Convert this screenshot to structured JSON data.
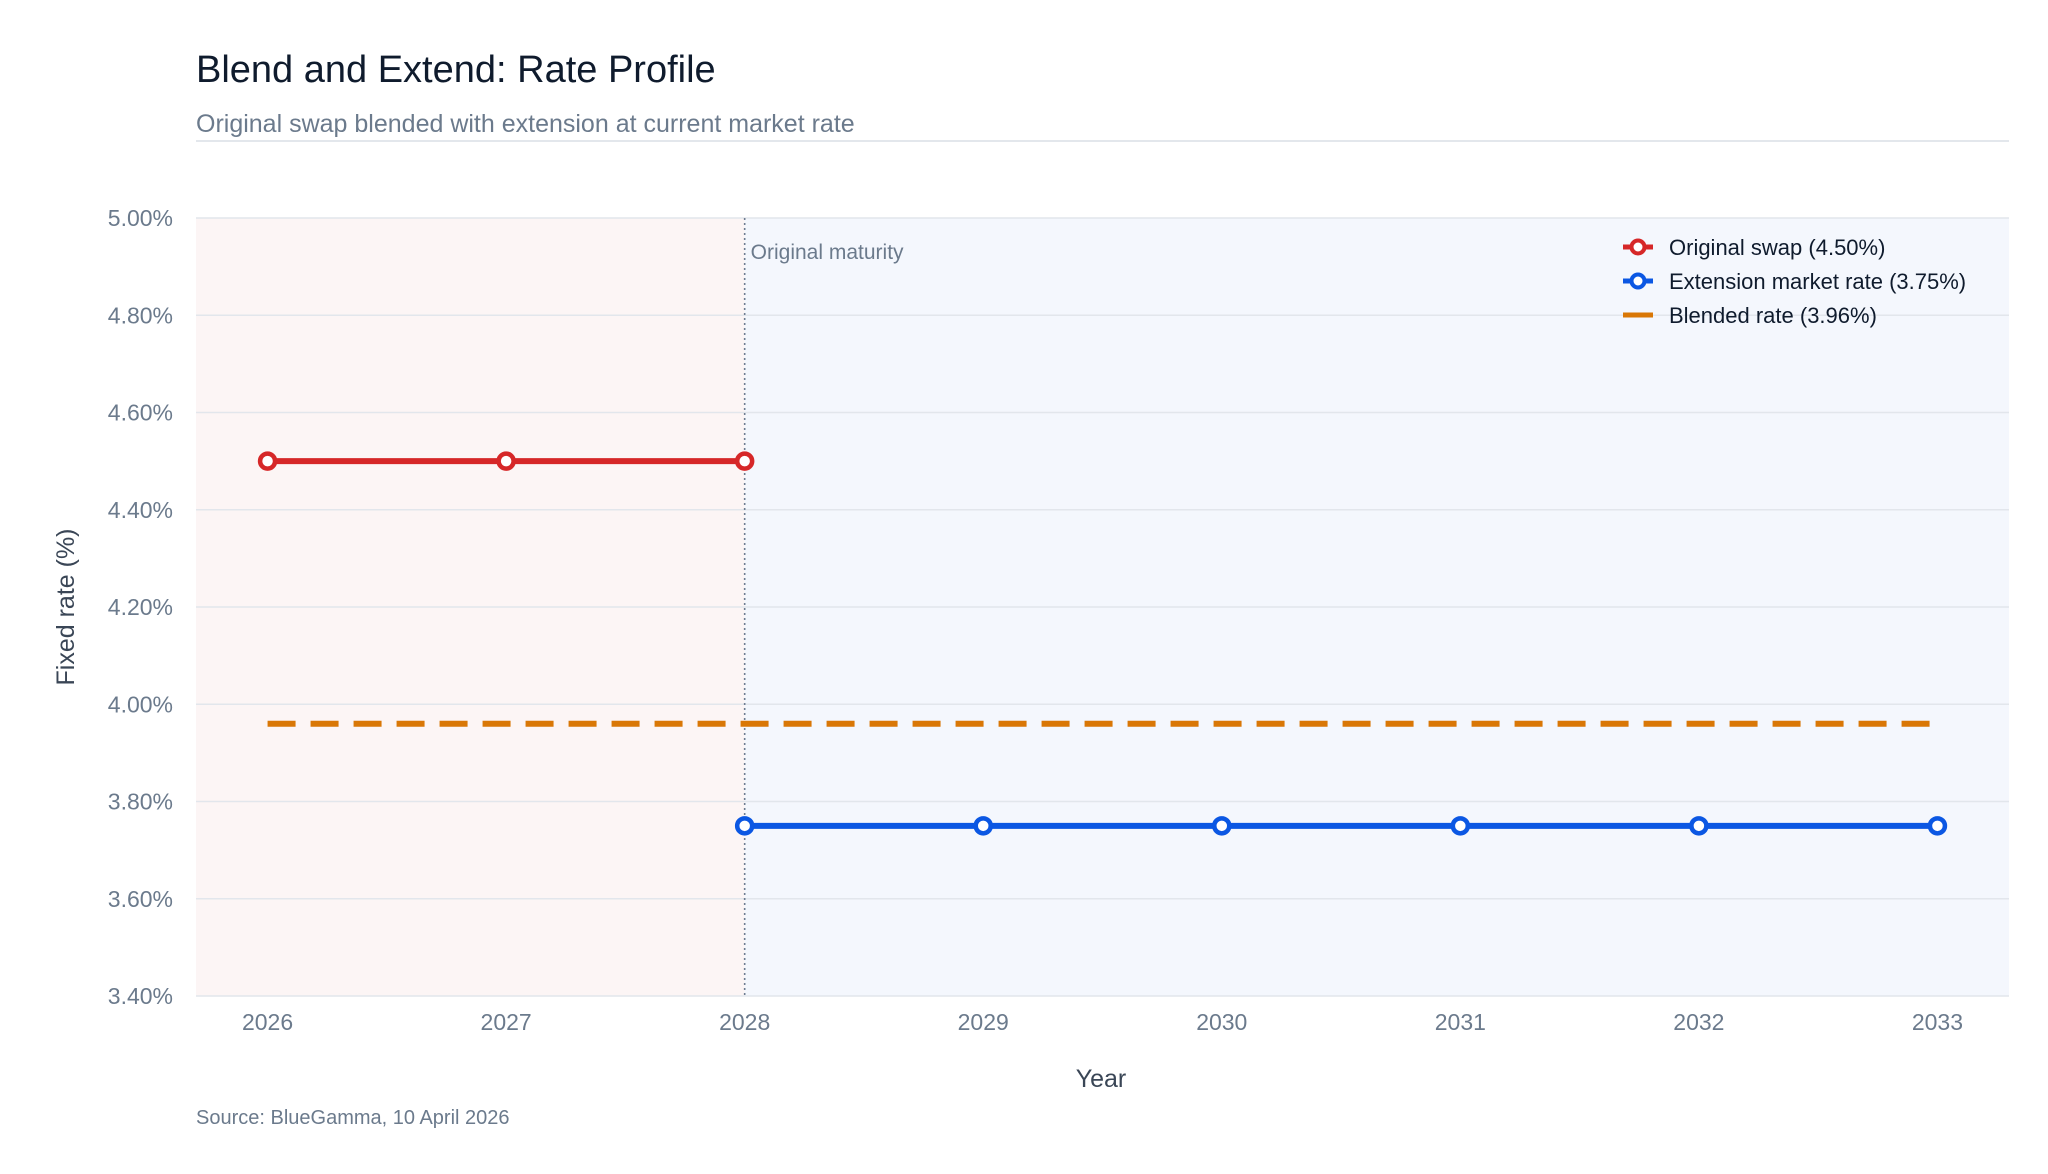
{
  "chart_data": {
    "type": "line",
    "title": "Blend and Extend: Rate Profile",
    "subtitle": "Original swap blended with extension at current market rate",
    "xlabel": "Year",
    "ylabel": "Fixed rate (%)",
    "x_ticks": [
      "2026",
      "2027",
      "2028",
      "2029",
      "2030",
      "2031",
      "2032",
      "2033"
    ],
    "y_ticks": [
      "3.40%",
      "3.60%",
      "3.80%",
      "4.00%",
      "4.20%",
      "4.40%",
      "4.60%",
      "4.80%",
      "5.00%"
    ],
    "xlim": [
      2025.7,
      2033.3
    ],
    "ylim": [
      3.4,
      5.0
    ],
    "grid": true,
    "legend_position": "top-right",
    "regions": [
      {
        "from": 2025.7,
        "to": 2028,
        "color": "#fcf5f5"
      },
      {
        "from": 2028,
        "to": 2033.3,
        "color": "#f4f7fd"
      }
    ],
    "vertical_marker": {
      "x": 2028,
      "label": "Original maturity"
    },
    "series": [
      {
        "name": "Original swap (4.50%)",
        "style": "line-markers",
        "color": "#d62728",
        "x": [
          2026,
          2027,
          2028
        ],
        "y": [
          4.5,
          4.5,
          4.5
        ]
      },
      {
        "name": "Extension market rate (3.75%)",
        "style": "line-markers",
        "color": "#0b57e3",
        "x": [
          2028,
          2029,
          2030,
          2031,
          2032,
          2033
        ],
        "y": [
          3.75,
          3.75,
          3.75,
          3.75,
          3.75,
          3.75
        ]
      },
      {
        "name": "Blended rate (3.96%)",
        "style": "dashed",
        "color": "#d97706",
        "x": [
          2026,
          2033
        ],
        "y": [
          3.96,
          3.96
        ]
      }
    ],
    "source": "Source: BlueGamma, 10 April 2026"
  }
}
